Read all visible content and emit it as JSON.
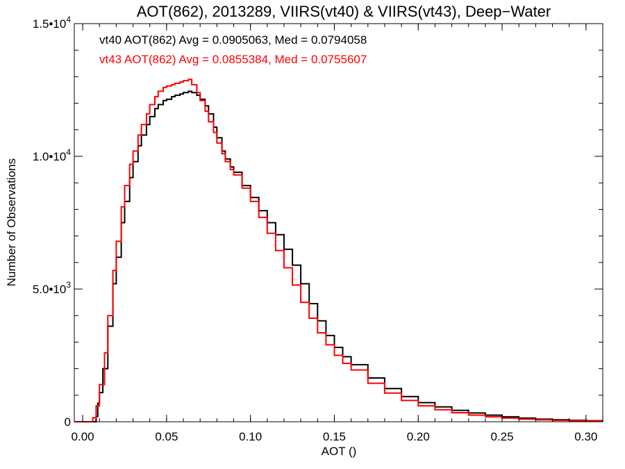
{
  "chart_data": {
    "type": "line",
    "title": "AOT(862), 2013289, VIIRS(vt40) & VIIRS(vt43), Deep−Water",
    "xlabel": "AOT ()",
    "ylabel": "Number of Observations",
    "xlim": [
      -0.005,
      0.31
    ],
    "ylim": [
      0,
      15000
    ],
    "x_ticks": [
      0.0,
      0.05,
      0.1,
      0.15,
      0.2,
      0.25,
      0.3
    ],
    "x_tick_labels": [
      "0.00",
      "0.05",
      "0.10",
      "0.15",
      "0.20",
      "0.25",
      "0.30"
    ],
    "y_ticks": [
      0,
      5000,
      10000,
      15000
    ],
    "y_tick_labels": [
      {
        "mantissa": "0",
        "exp": ""
      },
      {
        "mantissa": "5.0•10",
        "exp": "3"
      },
      {
        "mantissa": "1.0•10",
        "exp": "4"
      },
      {
        "mantissa": "1.5•10",
        "exp": "4"
      }
    ],
    "grid": false,
    "style": "step",
    "annotations": [
      {
        "text": "vt40 AOT(862) Avg = 0.0905063, Med = 0.0794058",
        "color": "#000000"
      },
      {
        "text": "vt43 AOT(862) Avg = 0.0855384, Med = 0.0755607",
        "color": "#ff0000"
      }
    ],
    "series": [
      {
        "color": "#000000",
        "x": [
          -0.005,
          0.005,
          0.008,
          0.009,
          0.01,
          0.012,
          0.015,
          0.018,
          0.02,
          0.023,
          0.025,
          0.028,
          0.03,
          0.033,
          0.035,
          0.038,
          0.04,
          0.043,
          0.045,
          0.048,
          0.05,
          0.053,
          0.055,
          0.058,
          0.06,
          0.063,
          0.065,
          0.068,
          0.07,
          0.073,
          0.075,
          0.078,
          0.08,
          0.083,
          0.085,
          0.088,
          0.09,
          0.095,
          0.1,
          0.105,
          0.11,
          0.115,
          0.12,
          0.125,
          0.13,
          0.135,
          0.14,
          0.145,
          0.15,
          0.155,
          0.16,
          0.17,
          0.18,
          0.19,
          0.2,
          0.21,
          0.22,
          0.23,
          0.24,
          0.25,
          0.26,
          0.27,
          0.28,
          0.29,
          0.3,
          0.31
        ],
        "y": [
          0,
          0,
          200,
          700,
          1100,
          2000,
          3600,
          5200,
          6200,
          7500,
          8300,
          9200,
          9800,
          10400,
          10800,
          11200,
          11500,
          11800,
          11950,
          12100,
          12150,
          12250,
          12300,
          12350,
          12400,
          12450,
          12400,
          12300,
          12150,
          11900,
          11600,
          11100,
          10700,
          10200,
          9900,
          9600,
          9400,
          8900,
          8450,
          7950,
          7500,
          7050,
          6500,
          5900,
          5200,
          4450,
          3800,
          3250,
          2800,
          2450,
          2150,
          1650,
          1250,
          950,
          720,
          560,
          430,
          330,
          250,
          185,
          140,
          100,
          75,
          55,
          40,
          30
        ]
      },
      {
        "color": "#ff0000",
        "x": [
          -0.005,
          0.004,
          0.006,
          0.008,
          0.01,
          0.013,
          0.015,
          0.018,
          0.02,
          0.023,
          0.025,
          0.028,
          0.03,
          0.033,
          0.035,
          0.038,
          0.04,
          0.043,
          0.045,
          0.048,
          0.05,
          0.053,
          0.055,
          0.058,
          0.06,
          0.063,
          0.065,
          0.068,
          0.07,
          0.073,
          0.075,
          0.078,
          0.08,
          0.083,
          0.085,
          0.088,
          0.09,
          0.095,
          0.1,
          0.105,
          0.11,
          0.115,
          0.12,
          0.125,
          0.13,
          0.135,
          0.14,
          0.145,
          0.15,
          0.155,
          0.16,
          0.17,
          0.18,
          0.19,
          0.2,
          0.21,
          0.22,
          0.23,
          0.24,
          0.25,
          0.26,
          0.27,
          0.28,
          0.29,
          0.3,
          0.31
        ],
        "y": [
          0,
          0,
          150,
          600,
          1400,
          2600,
          4000,
          5700,
          6800,
          8100,
          8900,
          9700,
          10200,
          10800,
          11200,
          11600,
          11950,
          12250,
          12450,
          12600,
          12650,
          12700,
          12750,
          12800,
          12850,
          12900,
          12700,
          12400,
          12100,
          11700,
          11300,
          10900,
          10500,
          10100,
          9800,
          9500,
          9300,
          8800,
          8300,
          7700,
          7100,
          6450,
          5800,
          5150,
          4500,
          3900,
          3350,
          2900,
          2500,
          2200,
          1950,
          1450,
          1080,
          800,
          600,
          450,
          340,
          250,
          185,
          135,
          100,
          72,
          52,
          38,
          27,
          20
        ]
      }
    ]
  }
}
